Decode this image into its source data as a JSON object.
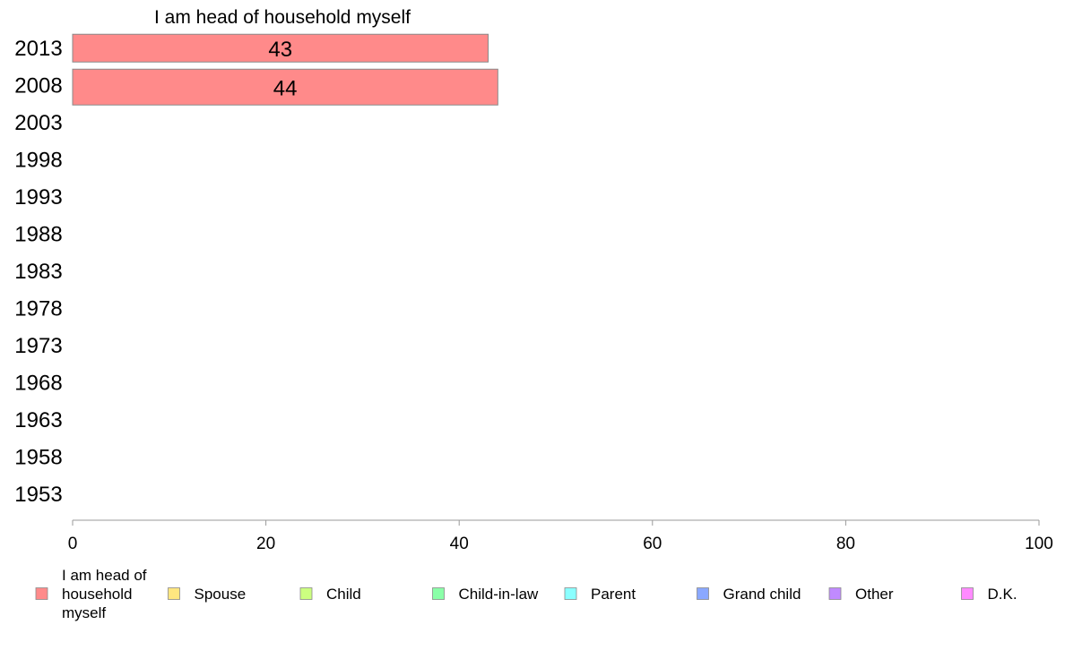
{
  "chart_data": {
    "type": "bar",
    "orientation": "horizontal",
    "title": "I am head of household myself",
    "categories": [
      "2013",
      "2008",
      "2003",
      "1998",
      "1993",
      "1988",
      "1983",
      "1978",
      "1973",
      "1968",
      "1963",
      "1958",
      "1953"
    ],
    "series": [
      {
        "name": "I am head of household myself",
        "color": "#ff8a8a",
        "values": [
          43,
          44,
          null,
          null,
          null,
          null,
          null,
          null,
          null,
          null,
          null,
          null,
          null
        ]
      }
    ],
    "xlim": [
      0,
      100
    ],
    "xticks": [
      "0",
      "20",
      "40",
      "60",
      "80",
      "100"
    ],
    "grid": false,
    "legend": {
      "position": "bottom",
      "items": [
        {
          "label_lines": [
            "I am head of",
            "household",
            "myself"
          ],
          "color": "#ff8a8a"
        },
        {
          "label_lines": [
            "Spouse"
          ],
          "color": "#ffe680"
        },
        {
          "label_lines": [
            "Child"
          ],
          "color": "#ccff80"
        },
        {
          "label_lines": [
            "Child-in-law"
          ],
          "color": "#8affa8"
        },
        {
          "label_lines": [
            "Parent"
          ],
          "color": "#8affff"
        },
        {
          "label_lines": [
            "Grand child"
          ],
          "color": "#8aa8ff"
        },
        {
          "label_lines": [
            "Other"
          ],
          "color": "#c08aff"
        },
        {
          "label_lines": [
            "D.K."
          ],
          "color": "#ff8aff"
        }
      ]
    }
  }
}
